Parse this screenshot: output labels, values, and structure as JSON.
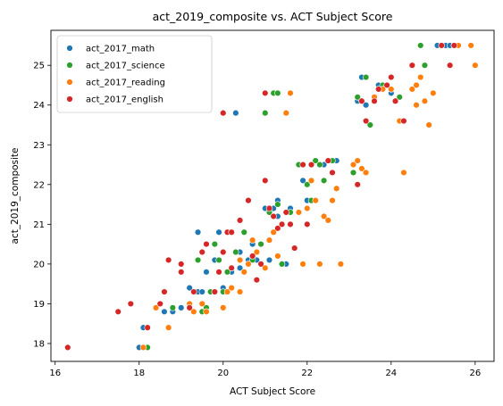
{
  "chart_data": {
    "type": "scatter",
    "title": "act_2019_composite vs. ACT Subject Score",
    "xlabel": "ACT Subject Score",
    "ylabel": "act_2019_composite",
    "xlim": [
      15.9,
      26.45
    ],
    "ylim": [
      17.55,
      25.88
    ],
    "xticks": [
      16,
      18,
      20,
      22,
      24,
      26
    ],
    "yticks": [
      18,
      19,
      20,
      21,
      22,
      23,
      24,
      25
    ],
    "legend_position": "upper-left",
    "grid": false,
    "series": [
      {
        "name": "act_2017_math",
        "color": "#1f77b4",
        "points": [
          [
            18.0,
            17.9
          ],
          [
            18.1,
            18.4
          ],
          [
            18.4,
            18.9
          ],
          [
            18.6,
            18.8
          ],
          [
            18.8,
            18.8
          ],
          [
            19.0,
            18.9
          ],
          [
            19.2,
            19.4
          ],
          [
            19.4,
            19.3
          ],
          [
            19.4,
            20.8
          ],
          [
            19.5,
            19.3
          ],
          [
            19.6,
            18.9
          ],
          [
            19.6,
            19.8
          ],
          [
            19.8,
            20.1
          ],
          [
            19.9,
            20.8
          ],
          [
            20.0,
            19.4
          ],
          [
            20.2,
            19.8
          ],
          [
            20.3,
            23.8
          ],
          [
            20.4,
            20.3
          ],
          [
            20.4,
            19.9
          ],
          [
            20.6,
            20.1
          ],
          [
            20.7,
            20.5
          ],
          [
            20.8,
            20.1
          ],
          [
            21.0,
            21.4
          ],
          [
            21.1,
            20.1
          ],
          [
            21.2,
            21.4
          ],
          [
            21.3,
            21.6
          ],
          [
            21.3,
            21.2
          ],
          [
            21.5,
            21.3
          ],
          [
            21.6,
            21.4
          ],
          [
            21.5,
            20.0
          ],
          [
            21.8,
            22.5
          ],
          [
            21.9,
            22.1
          ],
          [
            22.1,
            22.5
          ],
          [
            22.0,
            21.6
          ],
          [
            22.4,
            22.5
          ],
          [
            22.7,
            22.6
          ],
          [
            23.1,
            22.3
          ],
          [
            23.2,
            24.1
          ],
          [
            23.3,
            24.7
          ],
          [
            23.4,
            24.0
          ],
          [
            23.7,
            24.5
          ],
          [
            24.0,
            24.3
          ],
          [
            24.2,
            24.2
          ],
          [
            24.8,
            25.0
          ],
          [
            25.1,
            25.5
          ],
          [
            25.3,
            25.5
          ],
          [
            25.4,
            25.5
          ],
          [
            25.5,
            25.5
          ]
        ]
      },
      {
        "name": "act_2017_science",
        "color": "#2ca02c",
        "points": [
          [
            18.2,
            17.9
          ],
          [
            18.8,
            18.9
          ],
          [
            19.4,
            20.1
          ],
          [
            19.5,
            18.8
          ],
          [
            19.6,
            18.9
          ],
          [
            19.7,
            19.3
          ],
          [
            19.8,
            20.5
          ],
          [
            19.9,
            20.1
          ],
          [
            20.0,
            19.3
          ],
          [
            20.1,
            19.8
          ],
          [
            20.3,
            20.3
          ],
          [
            20.5,
            20.8
          ],
          [
            20.7,
            20.1
          ],
          [
            20.9,
            20.5
          ],
          [
            21.1,
            21.3
          ],
          [
            21.2,
            24.3
          ],
          [
            21.3,
            21.5
          ],
          [
            21.4,
            20.0
          ],
          [
            21.6,
            21.3
          ],
          [
            21.8,
            22.5
          ],
          [
            22.0,
            22.0
          ],
          [
            22.1,
            21.6
          ],
          [
            22.2,
            22.6
          ],
          [
            22.3,
            22.5
          ],
          [
            22.4,
            22.1
          ],
          [
            22.6,
            22.6
          ],
          [
            23.1,
            22.3
          ],
          [
            23.2,
            24.2
          ],
          [
            23.4,
            24.7
          ],
          [
            23.5,
            23.5
          ],
          [
            23.8,
            24.5
          ],
          [
            24.0,
            24.4
          ],
          [
            24.2,
            24.2
          ],
          [
            24.7,
            25.5
          ],
          [
            24.8,
            25.0
          ],
          [
            21.0,
            23.8
          ],
          [
            21.3,
            24.3
          ]
        ]
      },
      {
        "name": "act_2017_reading",
        "color": "#ff7f0e",
        "points": [
          [
            18.1,
            17.9
          ],
          [
            18.4,
            18.9
          ],
          [
            18.7,
            18.4
          ],
          [
            19.2,
            19.0
          ],
          [
            19.3,
            18.8
          ],
          [
            19.5,
            19.0
          ],
          [
            19.6,
            18.8
          ],
          [
            19.8,
            19.3
          ],
          [
            20.0,
            18.9
          ],
          [
            20.1,
            19.3
          ],
          [
            20.2,
            19.4
          ],
          [
            20.4,
            19.3
          ],
          [
            20.4,
            20.1
          ],
          [
            20.5,
            19.8
          ],
          [
            20.6,
            20.0
          ],
          [
            20.7,
            20.6
          ],
          [
            20.8,
            20.3
          ],
          [
            20.9,
            20.0
          ],
          [
            21.0,
            19.9
          ],
          [
            21.1,
            20.6
          ],
          [
            21.2,
            20.8
          ],
          [
            21.3,
            20.2
          ],
          [
            21.5,
            23.8
          ],
          [
            21.6,
            24.3
          ],
          [
            21.8,
            21.3
          ],
          [
            21.9,
            20.0
          ],
          [
            22.0,
            21.4
          ],
          [
            22.1,
            22.1
          ],
          [
            22.2,
            21.6
          ],
          [
            22.3,
            20.0
          ],
          [
            22.4,
            21.2
          ],
          [
            22.5,
            21.1
          ],
          [
            22.6,
            21.6
          ],
          [
            22.7,
            21.9
          ],
          [
            22.8,
            20.0
          ],
          [
            23.1,
            22.5
          ],
          [
            23.2,
            22.6
          ],
          [
            23.3,
            22.4
          ],
          [
            23.4,
            22.3
          ],
          [
            23.6,
            24.2
          ],
          [
            23.8,
            24.4
          ],
          [
            24.0,
            24.4
          ],
          [
            24.1,
            24.1
          ],
          [
            24.2,
            23.6
          ],
          [
            24.3,
            22.3
          ],
          [
            24.5,
            24.4
          ],
          [
            24.6,
            24.5
          ],
          [
            24.7,
            24.7
          ],
          [
            24.8,
            24.1
          ],
          [
            24.9,
            23.5
          ],
          [
            25.0,
            24.3
          ],
          [
            25.6,
            25.5
          ],
          [
            25.9,
            25.5
          ],
          [
            26.0,
            25.0
          ],
          [
            24.6,
            24.0
          ]
        ]
      },
      {
        "name": "act_2017_english",
        "color": "#d62728",
        "points": [
          [
            16.3,
            17.9
          ],
          [
            17.5,
            18.8
          ],
          [
            17.8,
            19.0
          ],
          [
            18.2,
            18.4
          ],
          [
            18.5,
            19.0
          ],
          [
            18.6,
            19.3
          ],
          [
            18.7,
            20.1
          ],
          [
            19.0,
            19.8
          ],
          [
            19.0,
            20.0
          ],
          [
            19.2,
            18.9
          ],
          [
            19.3,
            19.3
          ],
          [
            19.5,
            20.3
          ],
          [
            19.6,
            20.5
          ],
          [
            19.8,
            19.3
          ],
          [
            19.9,
            19.8
          ],
          [
            20.0,
            20.3
          ],
          [
            20.1,
            20.8
          ],
          [
            20.2,
            19.9
          ],
          [
            20.4,
            21.1
          ],
          [
            20.6,
            21.6
          ],
          [
            20.8,
            19.6
          ],
          [
            20.9,
            20.0
          ],
          [
            21.0,
            22.1
          ],
          [
            21.1,
            21.4
          ],
          [
            21.2,
            21.2
          ],
          [
            21.3,
            20.9
          ],
          [
            21.4,
            21.0
          ],
          [
            21.5,
            21.3
          ],
          [
            21.6,
            21.0
          ],
          [
            21.7,
            20.4
          ],
          [
            21.9,
            22.5
          ],
          [
            22.0,
            21.0
          ],
          [
            22.1,
            22.5
          ],
          [
            22.5,
            22.6
          ],
          [
            22.6,
            22.3
          ],
          [
            23.2,
            22.0
          ],
          [
            23.3,
            24.1
          ],
          [
            23.4,
            23.6
          ],
          [
            23.6,
            24.1
          ],
          [
            23.7,
            24.4
          ],
          [
            23.9,
            24.5
          ],
          [
            24.0,
            24.7
          ],
          [
            24.1,
            24.1
          ],
          [
            24.3,
            23.6
          ],
          [
            24.5,
            25.0
          ],
          [
            25.5,
            25.5
          ],
          [
            25.4,
            25.0
          ],
          [
            25.2,
            25.5
          ],
          [
            20.0,
            23.8
          ],
          [
            21.0,
            24.3
          ],
          [
            20.7,
            20.2
          ],
          [
            20.2,
            20.8
          ]
        ]
      }
    ]
  }
}
